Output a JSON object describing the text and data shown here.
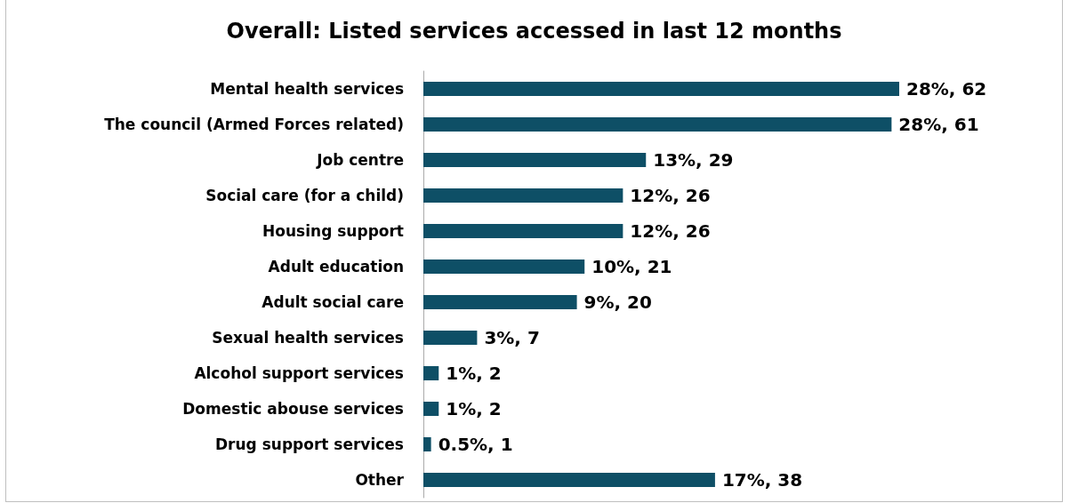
{
  "chart_data": {
    "type": "bar",
    "orientation": "horizontal",
    "title": "Overall: Listed services accessed in last 12 months",
    "categories": [
      "Mental health services",
      "The council (Armed Forces related)",
      "Job centre",
      "Social care (for a child)",
      "Housing support",
      "Adult education",
      "Adult social care",
      "Sexual health services",
      "Alcohol support services",
      "Domestic abouse services",
      "Drug support services",
      "Other"
    ],
    "values": [
      62,
      61,
      29,
      26,
      26,
      21,
      20,
      7,
      2,
      2,
      1,
      38
    ],
    "value_labels": [
      "28%, 62",
      "28%, 61",
      "13%, 29",
      "12%, 26",
      "12%, 26",
      "10%, 21",
      "9%, 20",
      "3%, 7",
      "1%, 2",
      "1%, 2",
      "0.5%, 1",
      "17%, 38"
    ],
    "color": "#0e4f66"
  }
}
